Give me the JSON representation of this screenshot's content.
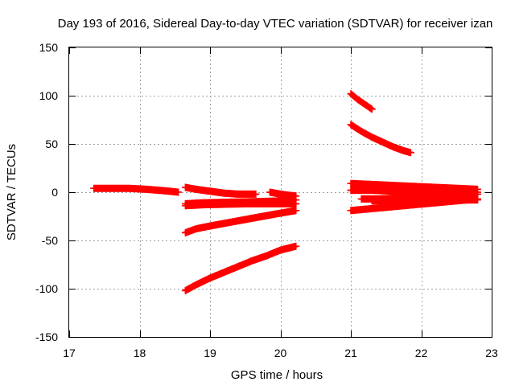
{
  "chart_data": {
    "type": "scatter",
    "title": "Day 193 of 2016, Sidereal Day-to-day VTEC variation (SDTVAR) for receiver izan",
    "xlabel": "GPS time / hours",
    "ylabel": "SDTVAR / TECUs",
    "xlim": [
      17,
      23
    ],
    "ylim": [
      -150,
      150
    ],
    "xticks": [
      17,
      18,
      19,
      20,
      21,
      22,
      23
    ],
    "yticks": [
      -150,
      -100,
      -50,
      0,
      50,
      100,
      150
    ],
    "grid": true,
    "marker": "plus",
    "color": "#ff0000",
    "series": [
      {
        "x": [
          17.35,
          17.6,
          17.85,
          18.1,
          18.35,
          18.55
        ],
        "y": [
          4,
          4,
          4,
          3,
          1.5,
          0
        ]
      },
      {
        "x": [
          18.65,
          18.8,
          19.0,
          19.2,
          19.4,
          19.65
        ],
        "y": [
          5,
          3,
          1,
          -1,
          -2,
          -2
        ]
      },
      {
        "x": [
          18.65,
          18.9,
          19.2,
          19.5,
          19.8,
          20.0,
          20.22
        ],
        "y": [
          -12,
          -11,
          -10.5,
          -10,
          -9.5,
          -9,
          -8
        ]
      },
      {
        "x": [
          18.65,
          18.9,
          19.2,
          19.5,
          19.8,
          20.0,
          20.22
        ],
        "y": [
          -14,
          -13,
          -12.5,
          -12,
          -12,
          -12,
          -12
        ]
      },
      {
        "x": [
          19.85,
          20.0,
          20.1,
          20.22
        ],
        "y": [
          0,
          -2,
          -3,
          -4
        ]
      },
      {
        "x": [
          18.65,
          18.8,
          19.0,
          19.3,
          19.6,
          19.9,
          20.22
        ],
        "y": [
          -42,
          -38,
          -35,
          -31,
          -27,
          -23,
          -19
        ]
      },
      {
        "x": [
          18.65,
          18.8,
          19.0,
          19.2,
          19.4,
          19.6,
          19.8,
          20.0,
          20.22
        ],
        "y": [
          -102,
          -96,
          -89,
          -83,
          -77,
          -71,
          -66,
          -60,
          -56
        ]
      },
      {
        "x": [
          21.0,
          21.1,
          21.2,
          21.3
        ],
        "y": [
          102,
          96,
          91,
          86
        ]
      },
      {
        "x": [
          21.0,
          21.15,
          21.3,
          21.45,
          21.6,
          21.75,
          21.85
        ],
        "y": [
          70,
          63,
          57,
          52,
          47,
          43,
          41
        ]
      },
      {
        "x": [
          21.0,
          21.3,
          21.6,
          21.9,
          22.2,
          22.5,
          22.8
        ],
        "y": [
          9,
          8,
          7,
          6,
          5,
          4,
          3
        ]
      },
      {
        "x": [
          21.0,
          21.3,
          21.6,
          21.9,
          22.2,
          22.5,
          22.8
        ],
        "y": [
          2,
          2,
          1,
          1,
          0,
          0,
          0
        ]
      },
      {
        "x": [
          21.15,
          21.4,
          21.7,
          22.0,
          22.3,
          22.6,
          22.8
        ],
        "y": [
          -7,
          -7,
          -6,
          -5,
          -4,
          -3,
          -2
        ]
      },
      {
        "x": [
          21.3,
          21.6,
          21.9,
          22.2,
          22.5,
          22.8
        ],
        "y": [
          -9,
          -9,
          -9,
          -9,
          -8,
          -8
        ]
      },
      {
        "x": [
          21.0,
          21.3,
          21.6,
          21.9,
          22.2,
          22.5,
          22.8
        ],
        "y": [
          -19,
          -17,
          -15,
          -13,
          -11,
          -9,
          -7
        ]
      }
    ]
  }
}
